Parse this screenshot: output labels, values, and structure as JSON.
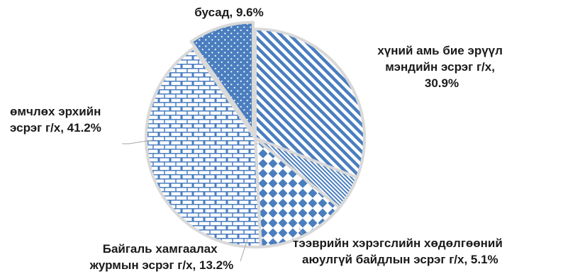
{
  "chart_data": {
    "type": "pie",
    "title": "",
    "colors": {
      "fill": "#4a7ebf",
      "background": "#ffffff",
      "separator": "#d9d9d9"
    },
    "slices": [
      {
        "id": "health",
        "value": 30.9,
        "label_lines": [
          "хүний амь бие эрүүл",
          "мэндийн эсрэг г/х,",
          "30.9%"
        ],
        "pattern": "diagonal-stripes",
        "exploded": false
      },
      {
        "id": "vehicle",
        "value": 5.1,
        "label_lines": [
          "тээврийн хэрэгслийн хөдөлгөөний",
          "аюулгүй байдлын эсрэг г/х, 5.1%"
        ],
        "pattern": "dense-diagonal",
        "exploded": false
      },
      {
        "id": "environment",
        "value": 13.2,
        "label_lines": [
          "Байгаль хамгаалах",
          "журмын эсрэг г/х, 13.2%"
        ],
        "pattern": "diamonds",
        "exploded": false
      },
      {
        "id": "property",
        "value": 41.2,
        "label_lines": [
          "өмчлөх эрхийн",
          "эсрэг г/х, 41.2%"
        ],
        "pattern": "bricks",
        "exploded": false
      },
      {
        "id": "other",
        "value": 9.6,
        "label_lines": [
          "бусад, 9.6%"
        ],
        "pattern": "dots",
        "exploded": true
      }
    ]
  }
}
